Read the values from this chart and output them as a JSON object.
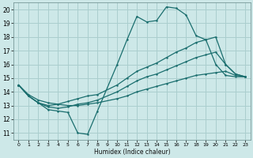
{
  "xlabel": "Humidex (Indice chaleur)",
  "xlim": [
    -0.5,
    23.5
  ],
  "ylim": [
    10.5,
    20.5
  ],
  "xticks": [
    0,
    1,
    2,
    3,
    4,
    5,
    6,
    7,
    8,
    9,
    10,
    11,
    12,
    13,
    14,
    15,
    16,
    17,
    18,
    19,
    20,
    21,
    22,
    23
  ],
  "yticks": [
    11,
    12,
    13,
    14,
    15,
    16,
    17,
    18,
    19,
    20
  ],
  "background_color": "#cde8e8",
  "grid_color": "#aacece",
  "line_color": "#1a6e6e",
  "line1_x": [
    0,
    1,
    2,
    3,
    4,
    5,
    6,
    7,
    8,
    10,
    11,
    12,
    13,
    14,
    15,
    16,
    17,
    18,
    19,
    20,
    21,
    22,
    23
  ],
  "line1_y": [
    14.5,
    13.7,
    13.2,
    12.7,
    12.6,
    12.5,
    11.0,
    10.9,
    12.6,
    16.0,
    17.8,
    19.5,
    19.1,
    19.2,
    20.2,
    20.1,
    19.6,
    18.1,
    17.8,
    16.0,
    15.2,
    15.1,
    15.1
  ],
  "line2_x": [
    0,
    1,
    2,
    3,
    4,
    5,
    6,
    7,
    8,
    10,
    11,
    12,
    13,
    14,
    15,
    16,
    17,
    18,
    19,
    20,
    21,
    22,
    23
  ],
  "line2_y": [
    14.5,
    13.7,
    13.2,
    13.0,
    13.1,
    13.3,
    13.5,
    13.7,
    13.8,
    14.5,
    15.0,
    15.5,
    15.8,
    16.1,
    16.5,
    16.9,
    17.2,
    17.6,
    17.8,
    18.0,
    16.0,
    15.3,
    15.1
  ],
  "line3_x": [
    0,
    1,
    2,
    3,
    4,
    5,
    6,
    7,
    8,
    10,
    11,
    12,
    13,
    14,
    15,
    16,
    17,
    18,
    19,
    20,
    21,
    22,
    23
  ],
  "line3_y": [
    14.5,
    13.7,
    13.2,
    12.9,
    12.8,
    12.9,
    13.1,
    13.2,
    13.4,
    14.0,
    14.4,
    14.8,
    15.1,
    15.3,
    15.6,
    15.9,
    16.2,
    16.5,
    16.7,
    16.9,
    16.0,
    15.3,
    15.1
  ],
  "line4_x": [
    0,
    1,
    2,
    3,
    4,
    5,
    6,
    7,
    8,
    10,
    11,
    12,
    13,
    14,
    15,
    16,
    17,
    18,
    19,
    20,
    21,
    22,
    23
  ],
  "line4_y": [
    14.5,
    13.8,
    13.4,
    13.2,
    13.1,
    13.0,
    13.0,
    13.1,
    13.2,
    13.5,
    13.7,
    14.0,
    14.2,
    14.4,
    14.6,
    14.8,
    15.0,
    15.2,
    15.3,
    15.4,
    15.5,
    15.2,
    15.1
  ]
}
